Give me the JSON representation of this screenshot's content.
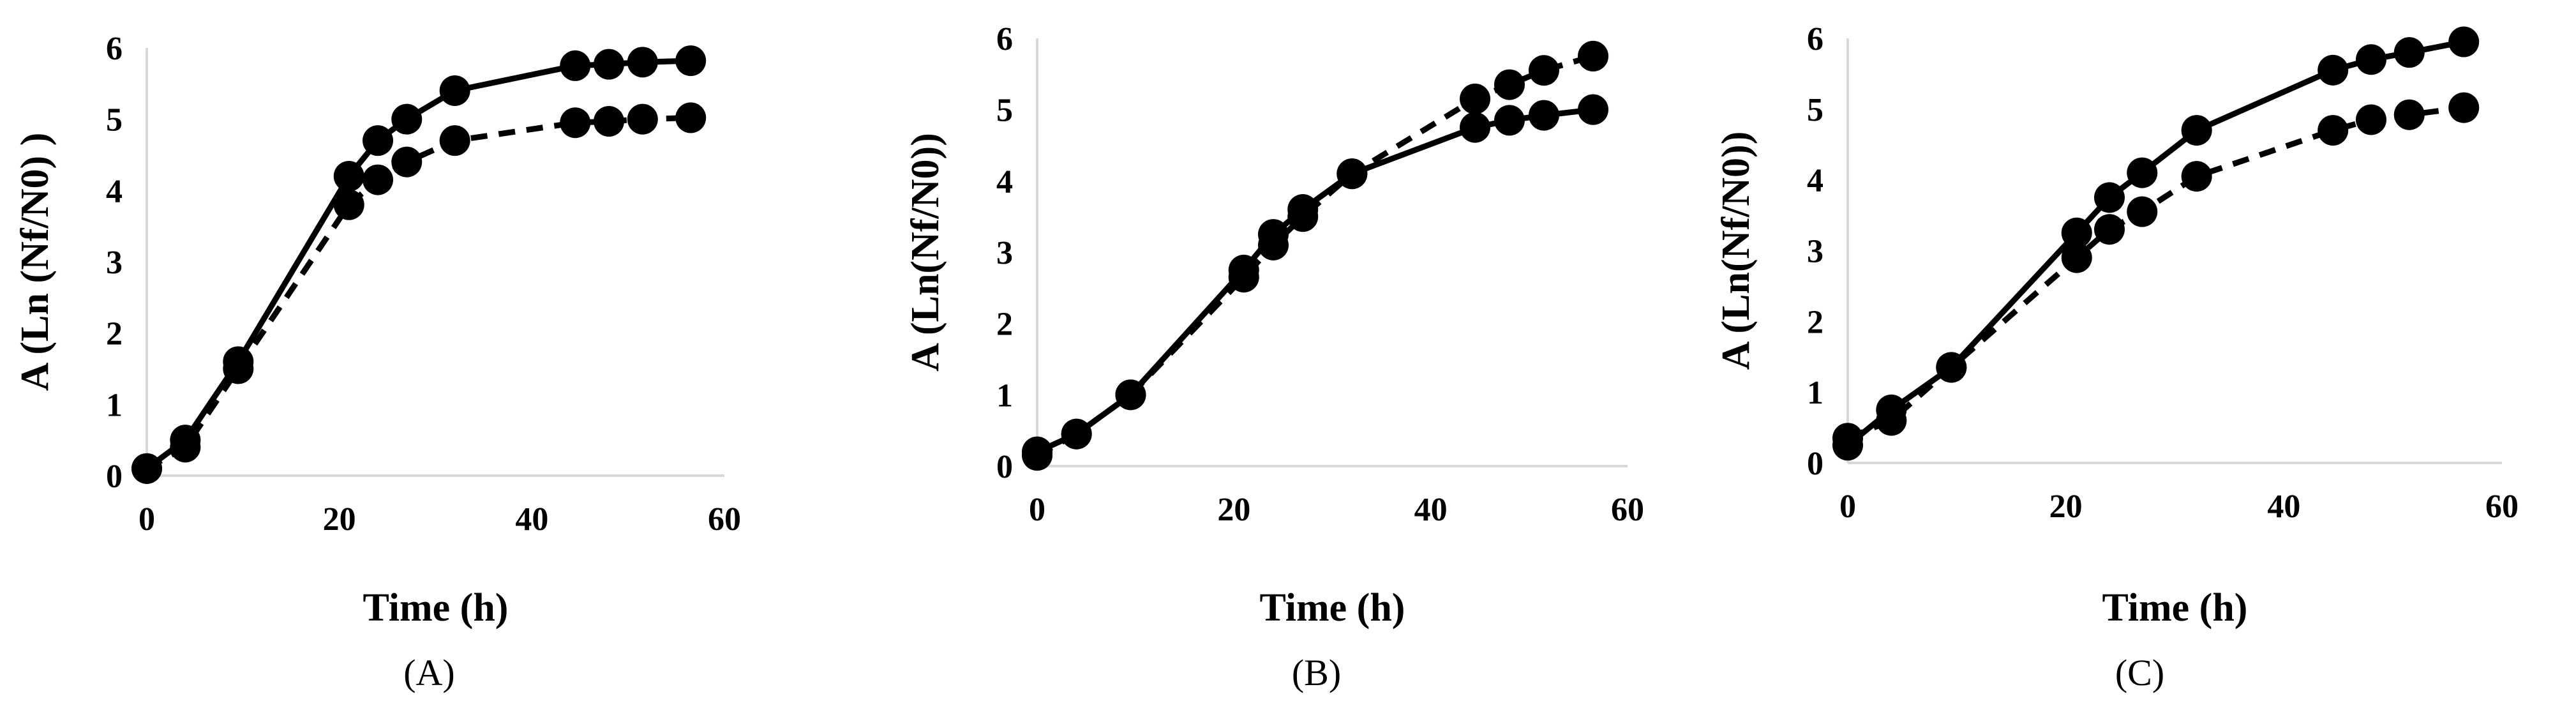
{
  "chart_data": [
    {
      "type": "line",
      "panel": "(A)",
      "xlabel": "Time (h)",
      "ylabel": "A (Ln (Nf/N0) )",
      "xlim": [
        0,
        60
      ],
      "ylim": [
        0,
        6
      ],
      "xticks": [
        "0",
        "20",
        "40",
        "60"
      ],
      "yticks": [
        "0",
        "1",
        "2",
        "3",
        "4",
        "5",
        "6"
      ],
      "series": [
        {
          "name": "solid",
          "style": "solid",
          "x": [
            0,
            4,
            9.5,
            21,
            24,
            27,
            32,
            44.5,
            48,
            51.5,
            56.5
          ],
          "y": [
            0.1,
            0.5,
            1.6,
            4.2,
            4.7,
            5.0,
            5.4,
            5.75,
            5.77,
            5.8,
            5.82
          ]
        },
        {
          "name": "dashed",
          "style": "dashed",
          "x": [
            0,
            4,
            9.5,
            21,
            24,
            27,
            32,
            44.5,
            48,
            51.5,
            56.5
          ],
          "y": [
            0.1,
            0.4,
            1.5,
            3.8,
            4.15,
            4.4,
            4.7,
            4.95,
            4.97,
            5.0,
            5.02
          ]
        }
      ]
    },
    {
      "type": "line",
      "panel": "(B)",
      "xlabel": "Time (h)",
      "ylabel": "A (Ln(Nf/N0))",
      "xlim": [
        0,
        60
      ],
      "ylim": [
        0,
        6
      ],
      "xticks": [
        "0",
        "20",
        "40",
        "60"
      ],
      "yticks": [
        "0",
        "1",
        "2",
        "3",
        "4",
        "5",
        "6"
      ],
      "series": [
        {
          "name": "solid",
          "style": "solid",
          "x": [
            0,
            4,
            9.5,
            21,
            24,
            27,
            32,
            44.5,
            48,
            51.5,
            56.5
          ],
          "y": [
            0.2,
            0.45,
            1.0,
            2.75,
            3.25,
            3.6,
            4.1,
            4.75,
            4.85,
            4.92,
            5.0
          ]
        },
        {
          "name": "dashed",
          "style": "dashed",
          "x": [
            0,
            4,
            9.5,
            21,
            24,
            27,
            32,
            44.5,
            48,
            51.5,
            56.5
          ],
          "y": [
            0.15,
            0.45,
            1.0,
            2.65,
            3.1,
            3.5,
            4.1,
            5.15,
            5.35,
            5.55,
            5.75
          ]
        }
      ]
    },
    {
      "type": "line",
      "panel": "(C)",
      "xlabel": "Time (h)",
      "ylabel": "A (Ln(Nf/N0))",
      "xlim": [
        0,
        60
      ],
      "ylim": [
        0,
        6
      ],
      "xticks": [
        "0",
        "20",
        "40",
        "60"
      ],
      "yticks": [
        "0",
        "1",
        "2",
        "3",
        "4",
        "5",
        "6"
      ],
      "series": [
        {
          "name": "solid",
          "style": "solid",
          "x": [
            0,
            4,
            9.5,
            21,
            24,
            27,
            32,
            44.5,
            48,
            51.5,
            56.5
          ],
          "y": [
            0.25,
            0.75,
            1.35,
            3.25,
            3.75,
            4.1,
            4.7,
            5.55,
            5.7,
            5.8,
            5.95
          ]
        },
        {
          "name": "dashed",
          "style": "dashed",
          "x": [
            0,
            4,
            9.5,
            21,
            24,
            27,
            32,
            44.5,
            48,
            51.5,
            56.5
          ],
          "y": [
            0.35,
            0.6,
            1.35,
            2.9,
            3.3,
            3.55,
            4.05,
            4.7,
            4.85,
            4.92,
            5.02
          ]
        }
      ]
    }
  ]
}
